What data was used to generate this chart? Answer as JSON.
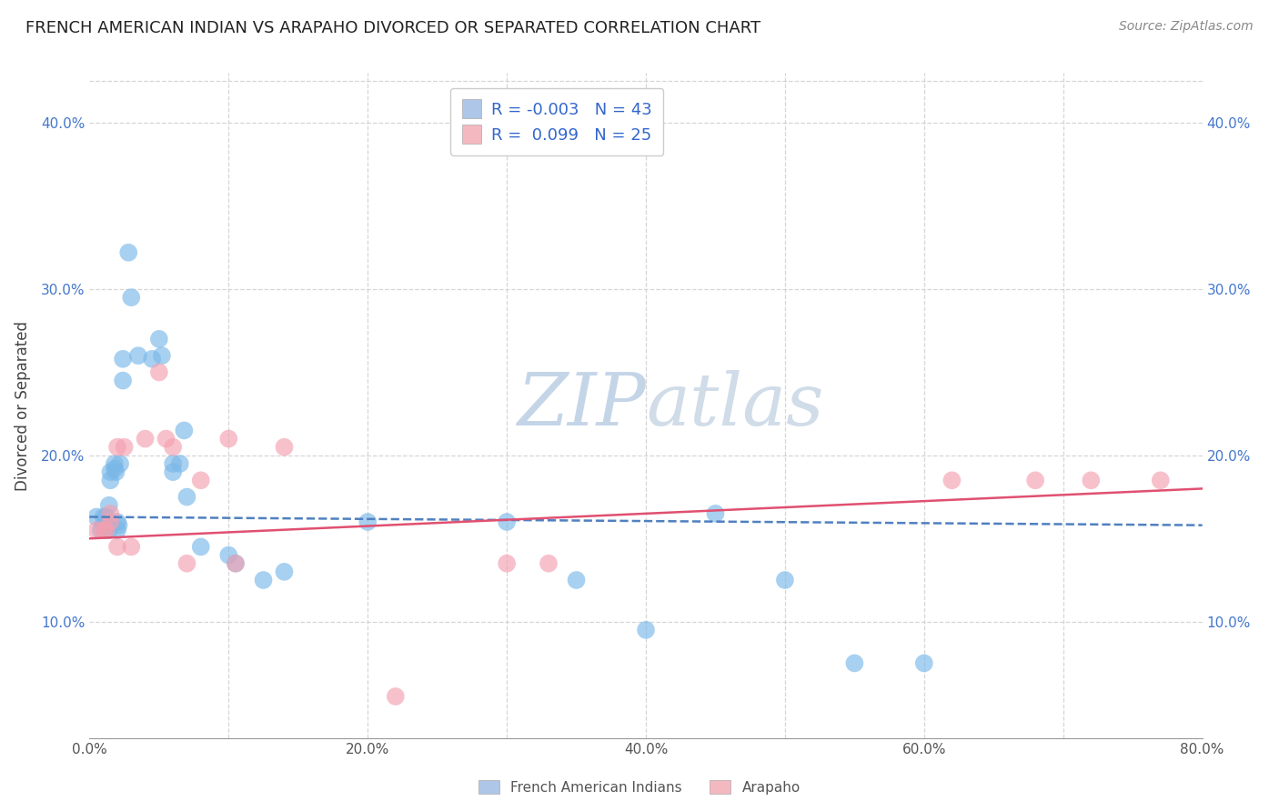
{
  "title": "FRENCH AMERICAN INDIAN VS ARAPAHO DIVORCED OR SEPARATED CORRELATION CHART",
  "source": "Source: ZipAtlas.com",
  "watermark": "ZIPatlas",
  "legend_entries": [
    {
      "label_r": "R = ",
      "r_val": "-0.003",
      "label_n": "  N = ",
      "n_val": "43",
      "color": "#aec6e8"
    },
    {
      "label_r": "R =  ",
      "r_val": " 0.099",
      "label_n": "  N = ",
      "n_val": "25",
      "color": "#f4b8c1"
    }
  ],
  "blue_scatter": [
    [
      0.5,
      16.3
    ],
    [
      0.8,
      15.5
    ],
    [
      1.0,
      16.3
    ],
    [
      1.0,
      15.8
    ],
    [
      1.2,
      16.3
    ],
    [
      1.2,
      15.7
    ],
    [
      1.4,
      17.0
    ],
    [
      1.4,
      15.5
    ],
    [
      1.5,
      19.0
    ],
    [
      1.5,
      18.5
    ],
    [
      1.8,
      19.5
    ],
    [
      1.8,
      19.2
    ],
    [
      1.9,
      19.0
    ],
    [
      2.0,
      16.0
    ],
    [
      2.0,
      15.5
    ],
    [
      2.1,
      15.8
    ],
    [
      2.2,
      19.5
    ],
    [
      2.4,
      24.5
    ],
    [
      2.4,
      25.8
    ],
    [
      2.8,
      32.2
    ],
    [
      3.0,
      29.5
    ],
    [
      3.5,
      26.0
    ],
    [
      4.5,
      25.8
    ],
    [
      5.0,
      27.0
    ],
    [
      5.2,
      26.0
    ],
    [
      6.0,
      19.0
    ],
    [
      6.0,
      19.5
    ],
    [
      6.5,
      19.5
    ],
    [
      6.8,
      21.5
    ],
    [
      7.0,
      17.5
    ],
    [
      8.0,
      14.5
    ],
    [
      10.0,
      14.0
    ],
    [
      10.5,
      13.5
    ],
    [
      12.5,
      12.5
    ],
    [
      14.0,
      13.0
    ],
    [
      20.0,
      16.0
    ],
    [
      30.0,
      16.0
    ],
    [
      35.0,
      12.5
    ],
    [
      40.0,
      9.5
    ],
    [
      45.0,
      16.5
    ],
    [
      50.0,
      12.5
    ],
    [
      55.0,
      7.5
    ],
    [
      60.0,
      7.5
    ]
  ],
  "pink_scatter": [
    [
      0.5,
      15.5
    ],
    [
      1.0,
      15.5
    ],
    [
      1.2,
      15.5
    ],
    [
      1.5,
      16.5
    ],
    [
      1.5,
      16.0
    ],
    [
      2.0,
      14.5
    ],
    [
      2.0,
      20.5
    ],
    [
      2.5,
      20.5
    ],
    [
      3.0,
      14.5
    ],
    [
      4.0,
      21.0
    ],
    [
      5.0,
      25.0
    ],
    [
      5.5,
      21.0
    ],
    [
      6.0,
      20.5
    ],
    [
      7.0,
      13.5
    ],
    [
      8.0,
      18.5
    ],
    [
      10.0,
      21.0
    ],
    [
      10.5,
      13.5
    ],
    [
      14.0,
      20.5
    ],
    [
      22.0,
      5.5
    ],
    [
      30.0,
      13.5
    ],
    [
      33.0,
      13.5
    ],
    [
      62.0,
      18.5
    ],
    [
      68.0,
      18.5
    ],
    [
      72.0,
      18.5
    ],
    [
      77.0,
      18.5
    ]
  ],
  "blue_line": [
    [
      0.0,
      16.3
    ],
    [
      80.0,
      15.8
    ]
  ],
  "pink_line": [
    [
      0.0,
      15.0
    ],
    [
      80.0,
      18.0
    ]
  ],
  "blue_color": "#7ab8e8",
  "pink_color": "#f4a0b0",
  "blue_line_color": "#5080c0",
  "pink_line_color": "#e05070",
  "xlim": [
    0.0,
    80.0
  ],
  "ylim": [
    3.0,
    43.0
  ],
  "x_ticks": [
    0,
    10,
    20,
    30,
    40,
    50,
    60,
    70,
    80
  ],
  "x_tick_labels": [
    "0.0%",
    "",
    "20.0%",
    "",
    "40.0%",
    "",
    "60.0%",
    "",
    "80.0%"
  ],
  "y_ticks": [
    10,
    20,
    30,
    40
  ],
  "y_tick_labels": [
    "10.0%",
    "20.0%",
    "30.0%",
    "40.0%"
  ],
  "background_color": "#ffffff",
  "grid_color": "#cccccc"
}
